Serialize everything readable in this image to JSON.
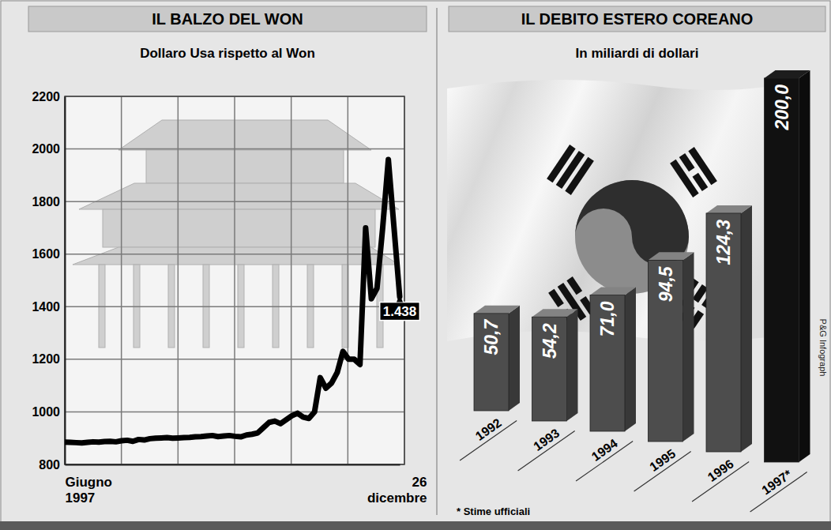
{
  "chart_data": [
    {
      "type": "line",
      "title": "IL BALZO DEL WON",
      "subtitle": "Dollaro Usa rispetto al Won",
      "categories": [
        "Giugno 1997",
        null,
        null,
        null,
        null,
        null,
        null,
        null,
        null,
        null,
        null,
        null,
        null,
        null,
        null,
        null,
        null,
        null,
        null,
        null,
        null,
        null,
        null,
        null,
        null,
        null,
        null,
        null,
        null,
        null,
        null,
        null,
        null,
        null,
        null,
        null,
        null,
        null,
        null,
        null,
        null,
        null,
        null,
        null,
        null,
        null,
        null,
        null,
        null,
        null,
        null,
        null,
        null,
        null,
        null,
        null,
        null,
        null,
        null,
        "26 dicembre"
      ],
      "values": [
        885,
        884,
        883,
        882,
        884,
        886,
        885,
        887,
        888,
        886,
        890,
        892,
        888,
        895,
        893,
        898,
        900,
        901,
        902,
        900,
        901,
        902,
        903,
        905,
        906,
        908,
        910,
        906,
        908,
        910,
        907,
        905,
        912,
        915,
        920,
        940,
        960,
        965,
        955,
        970,
        985,
        995,
        980,
        975,
        1000,
        1130,
        1090,
        1110,
        1150,
        1230,
        1200,
        1200,
        1180,
        1700,
        1430,
        1470,
        1700,
        1960,
        1700,
        1438
      ],
      "color": "#000000",
      "ylim": [
        800,
        2200
      ],
      "yticks": [
        800,
        1000,
        1200,
        1400,
        1600,
        1800,
        2000,
        2200
      ],
      "grid": true,
      "annotations": [
        {
          "label": "1.438",
          "value": 1438
        }
      ]
    },
    {
      "type": "bar",
      "title": "IL DEBITO ESTERO COREANO",
      "subtitle": "In miliardi di dollari",
      "categories": [
        "1992",
        "1993",
        "1994",
        "1995",
        "1996",
        "1997*"
      ],
      "values": [
        50.7,
        54.2,
        71.0,
        94.5,
        124.3,
        200.0
      ],
      "value_labels": [
        "50,7",
        "54,2",
        "71,0",
        "94,5",
        "124,3",
        "200,0"
      ],
      "colors": [
        "#4d4d4d",
        "#4d4d4d",
        "#4d4d4d",
        "#4d4d4d",
        "#4d4d4d",
        "#111111"
      ],
      "ylim": [
        0,
        200
      ],
      "data_labels": true,
      "tick_labels": "x",
      "note": "* Stime ufficiali",
      "source": "P&G Infograph"
    }
  ]
}
